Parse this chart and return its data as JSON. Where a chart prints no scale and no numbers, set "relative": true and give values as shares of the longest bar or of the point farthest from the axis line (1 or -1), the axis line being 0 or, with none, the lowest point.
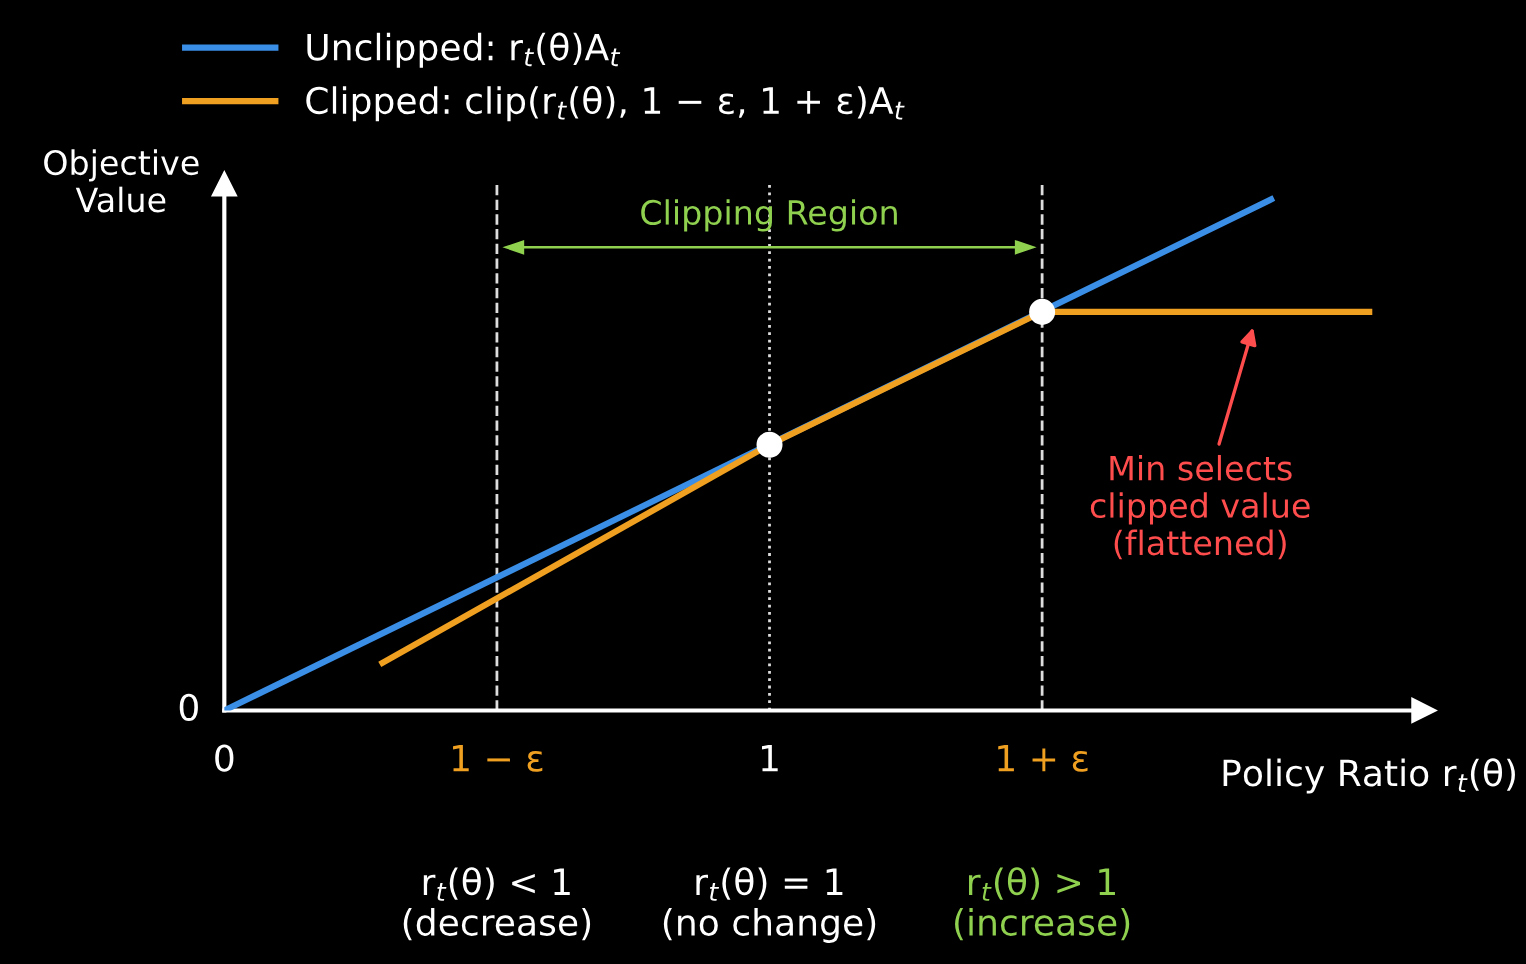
{
  "chart_data": {
    "type": "line",
    "relative": true,
    "ylabel": "Objective\nValue",
    "xlabel": "Policy Ratio r$_{t}$(θ)",
    "xlim": [
      0,
      2.2
    ],
    "xticks": [
      {
        "value": 0,
        "label": "0"
      },
      {
        "value": 0.5,
        "label": "1 − ε"
      },
      {
        "value": 1,
        "label": "1"
      },
      {
        "value": 1.5,
        "label": "1 + ε"
      }
    ],
    "legend": "top left",
    "grid": false,
    "series": [
      {
        "name": "Unclipped: r$_{t}$(θ)A$_{t}$",
        "color": "#3a8ee6",
        "x": [
          0,
          1.92
        ],
        "values": [
          0,
          1
        ]
      },
      {
        "name": "Clipped: clip(r$_{t}$(θ), 1 − ε, 1 + ε)A$_{t}$",
        "color": "#f0a020",
        "x": [
          0.29,
          1,
          1.5,
          2.1
        ],
        "values": [
          0.093,
          0.52,
          0.78,
          0.78
        ]
      },
      {
        "type": "scatter",
        "marker": "circle",
        "color": "#ffffff",
        "x": [
          1,
          1.5
        ],
        "values": [
          0.52,
          0.78
        ]
      }
    ],
    "ref_lines": [
      {
        "axis": "x",
        "value": 0.5,
        "line_style": "dashed",
        "color": "#dddddd"
      },
      {
        "axis": "x",
        "value": 1.5,
        "line_style": "dashed",
        "color": "#dddddd"
      },
      {
        "axis": "x",
        "value": 1,
        "line_style": "dotted",
        "color": "#dddddd"
      }
    ],
    "annotations": [
      "0",
      "Clipping Region",
      "Min selects\nclipped value\n(flattened)",
      "r$_{t}$(θ) < 1\n(decrease)",
      "r$_{t}$(θ) = 1\n(no change)",
      "r$_{t}$(θ) > 1\n(increase)"
    ]
  }
}
